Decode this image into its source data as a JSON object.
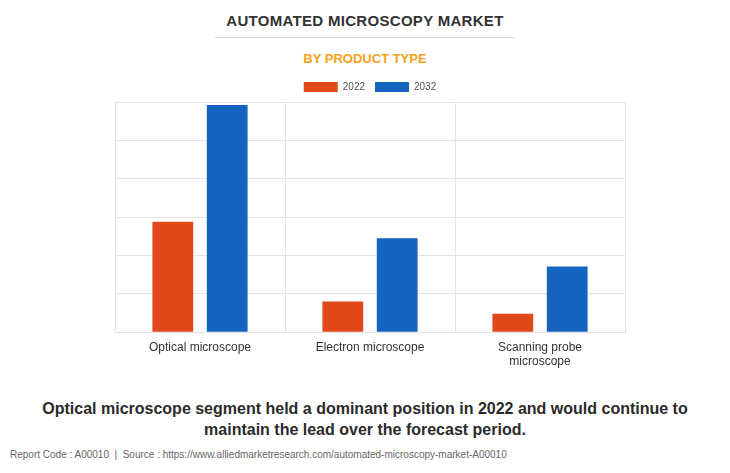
{
  "chart_data": {
    "type": "bar",
    "title": "AUTOMATED MICROSCOPY MARKET",
    "subtitle": "BY PRODUCT TYPE",
    "categories": [
      "Optical microscope",
      "Electron microscope",
      "Scanning probe microscope"
    ],
    "series": [
      {
        "name": "2022",
        "color": "#e2491a",
        "values": [
          2.88,
          0.8,
          0.48
        ]
      },
      {
        "name": "2032",
        "color": "#1565c0",
        "values": [
          5.92,
          2.45,
          1.71
        ]
      }
    ],
    "ylim": [
      0,
      6
    ],
    "yticks": [
      0,
      1,
      2,
      3,
      4,
      5,
      6
    ],
    "grid": true,
    "legend": "top",
    "tick_labels": "x",
    "annotations": [
      "Optical microscope segment held a dominant position in 2022 and would continue to maintain the lead over the forecast period.",
      "Report Code : A00010  |  Source : https://www.alliedmarketresearch.com/automated-microscopy-market-A00010"
    ]
  }
}
